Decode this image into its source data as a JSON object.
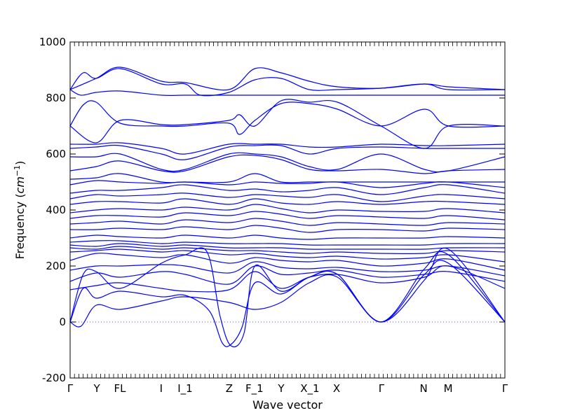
{
  "chart_data": {
    "type": "line",
    "title": "",
    "xlabel": "Wave vector",
    "ylabel_text": "Frequency (",
    "ylabel_unit_base": "cm",
    "ylabel_unit_exp": "−1",
    "ylabel_close": ")",
    "ylim": [
      -200,
      1000
    ],
    "y_ticks": [
      -200,
      0,
      200,
      400,
      600,
      800,
      1000
    ],
    "x_tick_labels": [
      {
        "label": "Γ",
        "x": 0
      },
      {
        "label": "Y",
        "x": 1.23
      },
      {
        "label": "FL",
        "x": 2.29
      },
      {
        "label": "I",
        "x": 4.19
      },
      {
        "label": "I_1",
        "x": 5.29
      },
      {
        "label": "Z",
        "x": 7.32
      },
      {
        "label": "F_1",
        "x": 8.48
      },
      {
        "label": "Y",
        "x": 9.71
      },
      {
        "label": "X_1",
        "x": 11.03
      },
      {
        "label": "X",
        "x": 12.26
      },
      {
        "label": "Γ",
        "x": 14.32
      },
      {
        "label": "N",
        "x": 16.26
      },
      {
        "label": "M",
        "x": 17.39
      },
      {
        "label": "Γ",
        "x": 20.0
      }
    ],
    "xlim": [
      0,
      20
    ],
    "grid": false,
    "line_color": "#0000ff",
    "zero_line_color": "#0000ff",
    "bands": [
      {
        "x": [
          0,
          0.5,
          1.2,
          2.3,
          4.2,
          5.3,
          7.3,
          8.5,
          9.7,
          11.0,
          12.3,
          14.3,
          16.3,
          17.4,
          20.0
        ],
        "y": [
          0,
          -15,
          60,
          45,
          75,
          90,
          70,
          45,
          70,
          140,
          160,
          0,
          150,
          260,
          0
        ]
      },
      {
        "x": [
          0,
          0.6,
          1.2,
          2.3,
          4.2,
          5.3,
          6.4,
          7.0,
          7.4,
          7.9,
          8.5,
          9.7,
          11.0,
          12.3,
          14.3,
          16.3,
          17.4,
          20.0
        ],
        "y": [
          0,
          120,
          85,
          110,
          90,
          95,
          40,
          -75,
          -80,
          -20,
          140,
          100,
          160,
          170,
          0,
          170,
          210,
          0
        ]
      },
      {
        "x": [
          0,
          0.6,
          1.2,
          2.3,
          4.2,
          5.3,
          6.3,
          6.9,
          7.4,
          8.0,
          8.5,
          9.7,
          11.0,
          12.3,
          14.3,
          16.3,
          17.4,
          20.0
        ],
        "y": [
          0,
          170,
          180,
          120,
          210,
          240,
          250,
          20,
          -85,
          -40,
          200,
          110,
          160,
          170,
          0,
          190,
          240,
          0
        ]
      },
      {
        "x": [
          0,
          1.2,
          2.3,
          4.2,
          5.3,
          7.3,
          8.5,
          9.7,
          11.0,
          12.3,
          14.3,
          16.3,
          17.4,
          20.0
        ],
        "y": [
          115,
          130,
          140,
          120,
          110,
          115,
          180,
          120,
          160,
          170,
          140,
          160,
          200,
          120
        ]
      },
      {
        "x": [
          0,
          1.2,
          2.3,
          4.2,
          5.3,
          7.3,
          8.5,
          9.7,
          11.0,
          12.3,
          14.3,
          16.3,
          17.4,
          20.0
        ],
        "y": [
          145,
          175,
          160,
          180,
          170,
          135,
          200,
          170,
          175,
          185,
          160,
          170,
          180,
          145
        ]
      },
      {
        "x": [
          0,
          1.2,
          2.3,
          4.2,
          5.3,
          7.3,
          8.5,
          9.7,
          11.0,
          12.3,
          14.3,
          16.3,
          17.4,
          20.0
        ],
        "y": [
          185,
          200,
          200,
          205,
          200,
          175,
          215,
          195,
          190,
          195,
          180,
          185,
          200,
          165
        ]
      },
      {
        "x": [
          0,
          1.2,
          2.3,
          4.2,
          5.3,
          7.3,
          8.5,
          9.7,
          11.0,
          12.3,
          14.3,
          16.3,
          17.4,
          20.0
        ],
        "y": [
          220,
          245,
          240,
          230,
          240,
          210,
          230,
          220,
          215,
          220,
          200,
          210,
          225,
          185
        ]
      },
      {
        "x": [
          0,
          1.2,
          2.3,
          4.2,
          5.3,
          7.3,
          8.5,
          9.7,
          11.0,
          12.3,
          14.3,
          16.3,
          17.4,
          20.0
        ],
        "y": [
          250,
          255,
          260,
          250,
          255,
          240,
          245,
          235,
          230,
          235,
          225,
          230,
          240,
          215
        ]
      },
      {
        "x": [
          0,
          1.2,
          2.3,
          4.2,
          5.3,
          7.3,
          8.5,
          9.7,
          11.0,
          12.3,
          14.3,
          16.3,
          17.4,
          20.0
        ],
        "y": [
          265,
          260,
          270,
          260,
          265,
          255,
          255,
          250,
          245,
          250,
          245,
          245,
          255,
          250
        ]
      },
      {
        "x": [
          0,
          1.2,
          2.3,
          4.2,
          5.3,
          7.3,
          8.5,
          9.7,
          11.0,
          12.3,
          14.3,
          16.3,
          17.4,
          20.0
        ],
        "y": [
          275,
          270,
          280,
          270,
          275,
          265,
          265,
          265,
          260,
          260,
          260,
          260,
          265,
          265
        ]
      },
      {
        "x": [
          0,
          1.2,
          2.3,
          4.2,
          5.3,
          7.3,
          8.5,
          9.7,
          11.0,
          12.3,
          14.3,
          16.3,
          17.4,
          20.0
        ],
        "y": [
          285,
          290,
          290,
          280,
          285,
          280,
          280,
          280,
          275,
          275,
          275,
          275,
          280,
          280
        ]
      },
      {
        "x": [
          0,
          1.2,
          2.3,
          4.2,
          5.3,
          7.3,
          8.5,
          9.7,
          11.0,
          12.3,
          14.3,
          16.3,
          17.4,
          20.0
        ],
        "y": [
          300,
          310,
          305,
          300,
          310,
          300,
          310,
          300,
          295,
          300,
          300,
          300,
          305,
          300
        ]
      },
      {
        "x": [
          0,
          1.2,
          2.3,
          4.2,
          5.3,
          7.3,
          8.5,
          9.7,
          11.0,
          12.3,
          14.3,
          16.3,
          17.4,
          20.0
        ],
        "y": [
          330,
          330,
          335,
          330,
          340,
          330,
          345,
          335,
          320,
          330,
          330,
          325,
          335,
          330
        ]
      },
      {
        "x": [
          0,
          1.2,
          2.3,
          4.2,
          5.3,
          7.3,
          8.5,
          9.7,
          11.0,
          12.3,
          14.3,
          16.3,
          17.4,
          20.0
        ],
        "y": [
          350,
          355,
          360,
          350,
          365,
          355,
          370,
          360,
          345,
          355,
          350,
          345,
          355,
          350
        ]
      },
      {
        "x": [
          0,
          1.2,
          2.3,
          4.2,
          5.3,
          7.3,
          8.5,
          9.7,
          11.0,
          12.3,
          14.3,
          16.3,
          17.4,
          20.0
        ],
        "y": [
          370,
          380,
          380,
          375,
          390,
          380,
          395,
          385,
          370,
          380,
          375,
          370,
          380,
          365
        ]
      },
      {
        "x": [
          0,
          1.2,
          2.3,
          4.2,
          5.3,
          7.3,
          8.5,
          9.7,
          11.0,
          12.3,
          14.3,
          16.3,
          17.4,
          20.0
        ],
        "y": [
          390,
          400,
          405,
          400,
          410,
          400,
          420,
          405,
          390,
          400,
          395,
          395,
          405,
          390
        ]
      },
      {
        "x": [
          0,
          1.2,
          2.3,
          4.2,
          5.3,
          7.3,
          8.5,
          9.7,
          11.0,
          12.3,
          14.3,
          16.3,
          17.4,
          20.0
        ],
        "y": [
          420,
          430,
          430,
          425,
          440,
          420,
          440,
          425,
          420,
          430,
          420,
          430,
          430,
          420
        ]
      },
      {
        "x": [
          0,
          1.2,
          2.3,
          4.2,
          5.3,
          7.3,
          8.5,
          9.7,
          11.0,
          12.3,
          14.3,
          16.3,
          17.4,
          20.0
        ],
        "y": [
          440,
          455,
          450,
          455,
          460,
          445,
          455,
          450,
          445,
          455,
          430,
          450,
          455,
          440
        ]
      },
      {
        "x": [
          0,
          1.2,
          2.3,
          4.2,
          5.3,
          7.3,
          8.5,
          9.7,
          11.0,
          12.3,
          14.3,
          16.3,
          17.4,
          20.0
        ],
        "y": [
          460,
          470,
          470,
          480,
          490,
          470,
          475,
          465,
          470,
          480,
          455,
          480,
          490,
          460
        ]
      },
      {
        "x": [
          0,
          1.2,
          2.3,
          4.2,
          5.3,
          7.3,
          8.5,
          9.7,
          11.0,
          12.3,
          14.3,
          16.3,
          17.4,
          20.0
        ],
        "y": [
          490,
          505,
          500,
          495,
          500,
          490,
          500,
          495,
          495,
          500,
          480,
          495,
          500,
          480
        ]
      },
      {
        "x": [
          0,
          1.2,
          2.3,
          4.2,
          5.3,
          7.3,
          8.5,
          9.7,
          11.0,
          12.3,
          14.3,
          16.3,
          17.4,
          20.0
        ],
        "y": [
          510,
          515,
          530,
          500,
          500,
          500,
          530,
          500,
          500,
          500,
          500,
          500,
          500,
          500
        ]
      },
      {
        "x": [
          0,
          1.2,
          2.3,
          4.2,
          5.3,
          7.3,
          8.5,
          9.7,
          11.0,
          12.3,
          14.3,
          16.3,
          17.4,
          20.0
        ],
        "y": [
          540,
          555,
          575,
          540,
          540,
          590,
          595,
          580,
          545,
          540,
          545,
          530,
          540,
          545
        ]
      },
      {
        "x": [
          0,
          1.2,
          2.3,
          4.2,
          5.3,
          7.3,
          8.5,
          9.7,
          11.0,
          12.3,
          14.3,
          16.3,
          17.4,
          20.0
        ],
        "y": [
          590,
          590,
          600,
          545,
          545,
          600,
          600,
          590,
          555,
          545,
          600,
          545,
          540,
          590
        ]
      },
      {
        "x": [
          0,
          1.2,
          2.3,
          4.2,
          5.3,
          7.3,
          8.5,
          9.7,
          11.0,
          12.3,
          14.3,
          16.3,
          17.4,
          20.0
        ],
        "y": [
          620,
          625,
          630,
          600,
          580,
          625,
          630,
          630,
          600,
          620,
          625,
          620,
          620,
          620
        ]
      },
      {
        "x": [
          0,
          1.2,
          2.3,
          4.2,
          5.3,
          7.3,
          8.5,
          9.7,
          11.0,
          12.3,
          14.3,
          16.3,
          17.4,
          20.0
        ],
        "y": [
          635,
          635,
          640,
          620,
          600,
          635,
          635,
          635,
          625,
          625,
          635,
          630,
          630,
          635
        ]
      },
      {
        "x": [
          0,
          0.6,
          1.2,
          2.3,
          4.2,
          5.3,
          7.3,
          7.8,
          8.5,
          9.7,
          11.0,
          12.3,
          14.3,
          16.3,
          17.4,
          20.0
        ],
        "y": [
          700,
          775,
          785,
          710,
          700,
          700,
          710,
          670,
          720,
          780,
          780,
          760,
          700,
          760,
          700,
          700
        ]
      },
      {
        "x": [
          0,
          1.2,
          2.3,
          4.2,
          5.3,
          7.3,
          7.8,
          8.5,
          9.7,
          11.0,
          12.3,
          14.3,
          16.3,
          17.4,
          20.0
        ],
        "y": [
          700,
          640,
          720,
          705,
          705,
          720,
          740,
          700,
          790,
          785,
          785,
          700,
          620,
          700,
          700
        ]
      },
      {
        "x": [
          0,
          0.5,
          1.2,
          2.3,
          4.2,
          5.3,
          7.3,
          8.5,
          9.7,
          11.0,
          12.3,
          14.3,
          16.3,
          17.4,
          20.0
        ],
        "y": [
          830,
          810,
          820,
          825,
          810,
          810,
          810,
          810,
          810,
          810,
          810,
          810,
          810,
          810,
          810
        ]
      },
      {
        "x": [
          0,
          0.6,
          1.2,
          2.3,
          4.2,
          5.3,
          6.0,
          7.3,
          8.5,
          9.7,
          11.0,
          12.3,
          14.3,
          16.3,
          17.4,
          20.0
        ],
        "y": [
          830,
          890,
          870,
          905,
          850,
          850,
          810,
          820,
          865,
          870,
          830,
          830,
          835,
          850,
          830,
          830
        ]
      },
      {
        "x": [
          0,
          1.2,
          2.3,
          4.2,
          5.3,
          7.3,
          8.5,
          9.7,
          11.0,
          12.3,
          14.3,
          16.3,
          17.4,
          20.0
        ],
        "y": [
          830,
          870,
          910,
          860,
          855,
          830,
          905,
          890,
          860,
          840,
          835,
          850,
          840,
          830
        ]
      }
    ]
  }
}
